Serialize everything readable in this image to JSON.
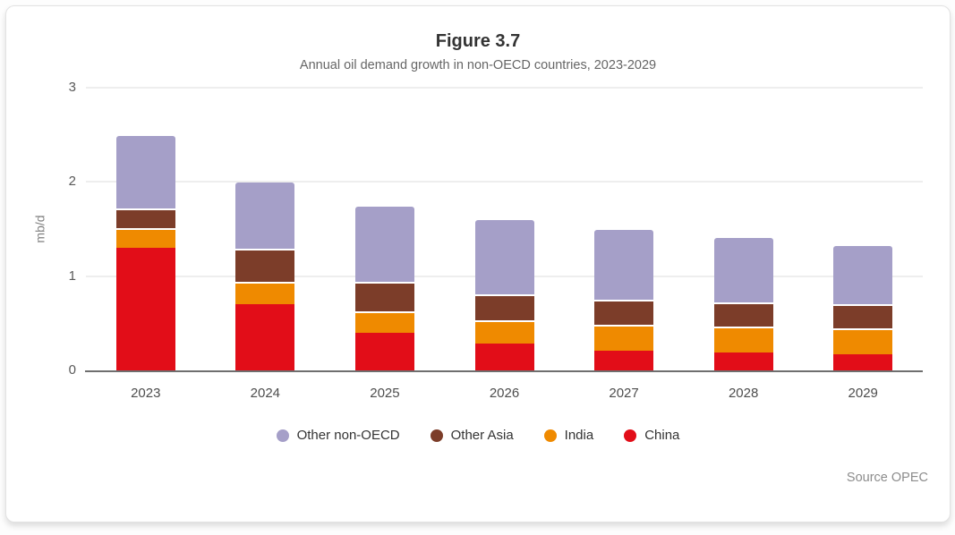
{
  "figure": {
    "title": "Figure 3.7",
    "subtitle": "Annual oil demand growth in non-OECD countries, 2023-2029",
    "source": "Source OPEC"
  },
  "chart_data": {
    "type": "bar",
    "stacked": true,
    "title": "Figure 3.7",
    "subtitle": "Annual oil demand growth in non-OECD countries, 2023-2029",
    "xlabel": "",
    "ylabel": "mb/d",
    "ylim": [
      0,
      3
    ],
    "yticks": [
      0,
      1,
      2,
      3
    ],
    "grid": true,
    "categories": [
      "2023",
      "2024",
      "2025",
      "2026",
      "2027",
      "2028",
      "2029"
    ],
    "series": [
      {
        "name": "China",
        "color": "#e20d18",
        "values": [
          1.3,
          0.7,
          0.4,
          0.28,
          0.21,
          0.19,
          0.17
        ]
      },
      {
        "name": "India",
        "color": "#ef8a00",
        "values": [
          0.21,
          0.24,
          0.23,
          0.25,
          0.27,
          0.27,
          0.28
        ]
      },
      {
        "name": "Other Asia",
        "color": "#7c3d29",
        "values": [
          0.21,
          0.35,
          0.31,
          0.28,
          0.27,
          0.26,
          0.25
        ]
      },
      {
        "name": "Other non-OECD",
        "color": "#a59fc8",
        "values": [
          0.76,
          0.7,
          0.79,
          0.78,
          0.74,
          0.68,
          0.62
        ]
      }
    ],
    "totals": [
      2.48,
      1.99,
      1.73,
      1.59,
      1.49,
      1.4,
      1.32
    ],
    "legend": [
      "Other non-OECD",
      "Other Asia",
      "India",
      "China"
    ],
    "legend_position": "bottom",
    "source": "Source OPEC"
  }
}
